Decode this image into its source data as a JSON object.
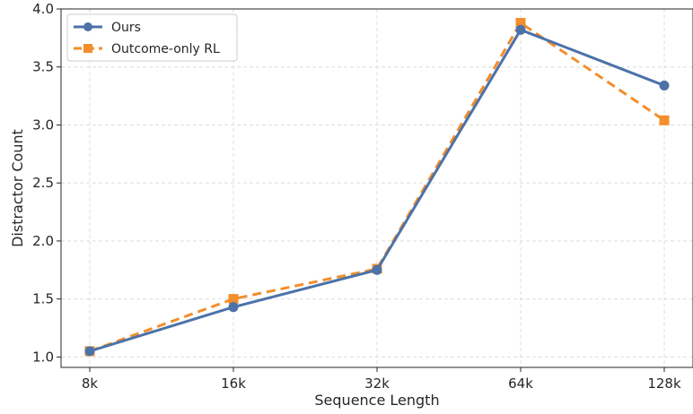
{
  "chart_data": {
    "type": "line",
    "categories": [
      "8k",
      "16k",
      "32k",
      "64k",
      "128k"
    ],
    "series": [
      {
        "name": "Ours",
        "values": [
          1.05,
          1.43,
          1.75,
          3.82,
          3.34
        ],
        "color": "#4c72a8",
        "linestyle": "solid",
        "marker": "circle"
      },
      {
        "name": "Outcome-only RL",
        "values": [
          1.05,
          1.5,
          1.76,
          3.88,
          3.04
        ],
        "color": "#f28e2b",
        "linestyle": "dashed",
        "marker": "square"
      }
    ],
    "title": "",
    "xlabel": "Sequence Length",
    "ylabel": "Distractor Count",
    "ylim": [
      0.91,
      4.0
    ],
    "yticks": [
      1.0,
      1.5,
      2.0,
      2.5,
      3.0,
      3.5,
      4.0
    ],
    "ytick_labels": [
      "1.0",
      "1.5",
      "2.0",
      "2.5",
      "3.0",
      "3.5",
      "4.0"
    ],
    "grid": true,
    "legend_position": "top-left"
  }
}
